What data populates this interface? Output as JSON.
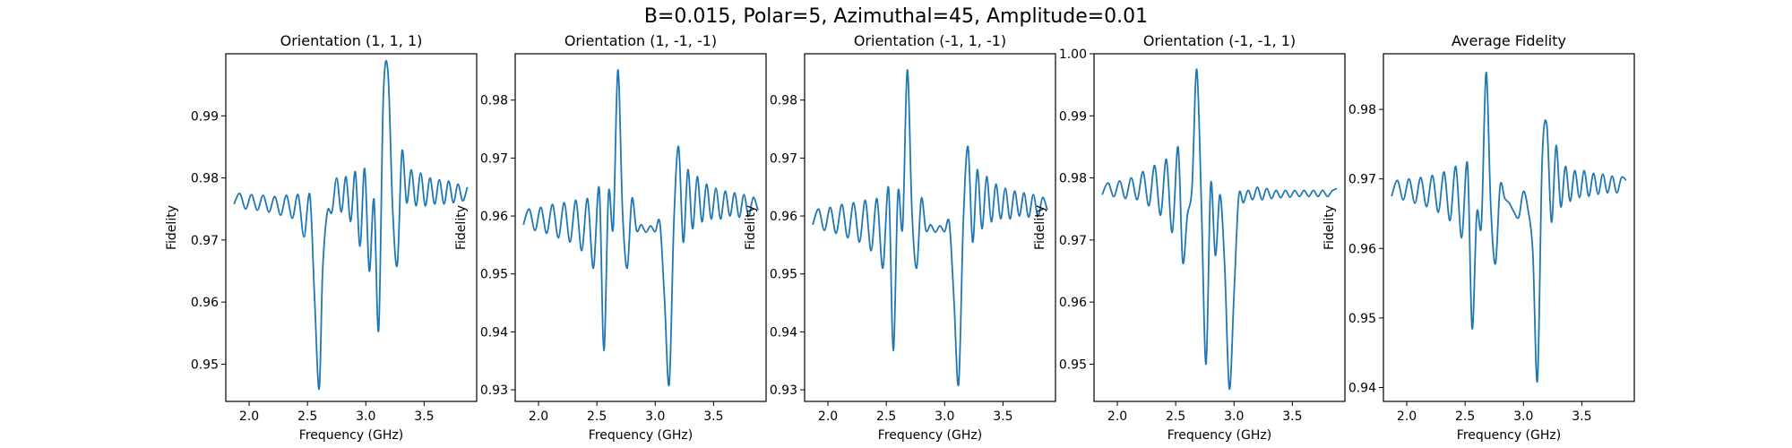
{
  "figure": {
    "suptitle": "B=0.015, Polar=5, Azimuthal=45, Amplitude=0.01",
    "line_color": "#1f77b4"
  },
  "chart_data": [
    {
      "type": "line",
      "title": "Orientation (1, 1, 1)",
      "xlabel": "Frequency (GHz)",
      "ylabel": "Fidelity",
      "xlim": [
        1.8,
        3.95
      ],
      "ylim": [
        0.944,
        1.0
      ],
      "xticks": [
        2.0,
        2.5,
        3.0,
        3.5
      ],
      "xtick_labels": [
        "2.0",
        "2.5",
        "3.0",
        "3.5"
      ],
      "yticks": [
        0.95,
        0.96,
        0.97,
        0.98,
        0.99
      ],
      "ytick_labels": [
        "0.95",
        "0.96",
        "0.97",
        "0.98",
        "0.99"
      ],
      "grid": false,
      "series": [
        {
          "x": [
            1.87,
            1.92,
            1.97,
            2.02,
            2.07,
            2.12,
            2.17,
            2.22,
            2.27,
            2.32,
            2.37,
            2.42,
            2.47,
            2.52,
            2.56,
            2.6,
            2.63,
            2.67,
            2.71,
            2.75,
            2.79,
            2.83,
            2.87,
            2.91,
            2.95,
            2.99,
            3.03,
            3.07,
            3.11,
            3.15,
            3.19,
            3.23,
            3.27,
            3.31,
            3.35,
            3.39,
            3.43,
            3.47,
            3.51,
            3.55,
            3.59,
            3.63,
            3.67,
            3.71,
            3.75,
            3.79,
            3.83,
            3.87
          ],
          "y": [
            0.9758,
            0.9775,
            0.975,
            0.9773,
            0.9748,
            0.9772,
            0.9745,
            0.977,
            0.974,
            0.9772,
            0.9735,
            0.9773,
            0.9705,
            0.9773,
            0.961,
            0.946,
            0.965,
            0.9745,
            0.9745,
            0.98,
            0.9745,
            0.9802,
            0.973,
            0.981,
            0.969,
            0.9815,
            0.965,
            0.9765,
            0.9555,
            0.993,
            0.997,
            0.975,
            0.966,
            0.9843,
            0.976,
            0.9813,
            0.9755,
            0.9808,
            0.9755,
            0.98,
            0.9758,
            0.9797,
            0.9758,
            0.9795,
            0.976,
            0.979,
            0.9763,
            0.9785
          ]
        }
      ]
    },
    {
      "type": "line",
      "title": "Orientation (1, -1, -1)",
      "xlabel": "Frequency (GHz)",
      "ylabel": "Fidelity",
      "xlim": [
        1.8,
        3.95
      ],
      "ylim": [
        0.928,
        0.988
      ],
      "xticks": [
        2.0,
        2.5,
        3.0,
        3.5
      ],
      "xtick_labels": [
        "2.0",
        "2.5",
        "3.0",
        "3.5"
      ],
      "yticks": [
        0.93,
        0.94,
        0.95,
        0.96,
        0.97,
        0.98
      ],
      "ytick_labels": [
        "0.93",
        "0.94",
        "0.95",
        "0.96",
        "0.97",
        "0.98"
      ],
      "grid": false,
      "series": [
        {
          "x": [
            1.87,
            1.92,
            1.97,
            2.02,
            2.07,
            2.12,
            2.17,
            2.22,
            2.27,
            2.32,
            2.37,
            2.42,
            2.47,
            2.52,
            2.56,
            2.6,
            2.64,
            2.68,
            2.72,
            2.76,
            2.8,
            2.84,
            2.88,
            2.92,
            2.96,
            3.0,
            3.04,
            3.08,
            3.12,
            3.16,
            3.2,
            3.24,
            3.28,
            3.32,
            3.36,
            3.4,
            3.44,
            3.48,
            3.52,
            3.56,
            3.6,
            3.64,
            3.68,
            3.72,
            3.76,
            3.8,
            3.84,
            3.88
          ],
          "y": [
            0.9585,
            0.9612,
            0.9575,
            0.9615,
            0.957,
            0.962,
            0.9562,
            0.9623,
            0.9555,
            0.9627,
            0.954,
            0.963,
            0.951,
            0.9648,
            0.9368,
            0.964,
            0.958,
            0.9852,
            0.9608,
            0.951,
            0.963,
            0.9575,
            0.9585,
            0.9572,
            0.9583,
            0.9573,
            0.9588,
            0.9455,
            0.931,
            0.959,
            0.972,
            0.9555,
            0.968,
            0.9578,
            0.9668,
            0.959,
            0.9655,
            0.9595,
            0.9648,
            0.9595,
            0.9643,
            0.96,
            0.964,
            0.9598,
            0.9637,
            0.96,
            0.9632,
            0.961
          ]
        }
      ]
    },
    {
      "type": "line",
      "title": "Orientation (-1, 1, -1)",
      "xlabel": "Frequency (GHz)",
      "ylabel": "Fidelity",
      "xlim": [
        1.8,
        3.95
      ],
      "ylim": [
        0.928,
        0.988
      ],
      "xticks": [
        2.0,
        2.5,
        3.0,
        3.5
      ],
      "xtick_labels": [
        "2.0",
        "2.5",
        "3.0",
        "3.5"
      ],
      "yticks": [
        0.93,
        0.94,
        0.95,
        0.96,
        0.97,
        0.98
      ],
      "ytick_labels": [
        "0.93",
        "0.94",
        "0.95",
        "0.96",
        "0.97",
        "0.98"
      ],
      "grid": false,
      "series": [
        {
          "x": [
            1.87,
            1.92,
            1.97,
            2.02,
            2.07,
            2.12,
            2.17,
            2.22,
            2.27,
            2.32,
            2.37,
            2.42,
            2.47,
            2.52,
            2.56,
            2.6,
            2.64,
            2.68,
            2.72,
            2.76,
            2.8,
            2.84,
            2.88,
            2.92,
            2.96,
            3.0,
            3.04,
            3.08,
            3.12,
            3.16,
            3.2,
            3.24,
            3.28,
            3.32,
            3.36,
            3.4,
            3.44,
            3.48,
            3.52,
            3.56,
            3.6,
            3.64,
            3.68,
            3.72,
            3.76,
            3.8,
            3.84,
            3.88
          ],
          "y": [
            0.9585,
            0.9612,
            0.9575,
            0.9615,
            0.957,
            0.962,
            0.9562,
            0.9623,
            0.9555,
            0.9627,
            0.954,
            0.963,
            0.951,
            0.9648,
            0.9368,
            0.964,
            0.958,
            0.9852,
            0.9608,
            0.951,
            0.963,
            0.9575,
            0.9585,
            0.9572,
            0.9583,
            0.9573,
            0.9588,
            0.9455,
            0.931,
            0.959,
            0.972,
            0.9555,
            0.968,
            0.9578,
            0.9668,
            0.959,
            0.9655,
            0.9595,
            0.9648,
            0.9595,
            0.9643,
            0.96,
            0.964,
            0.9598,
            0.9637,
            0.96,
            0.9632,
            0.961
          ]
        }
      ]
    },
    {
      "type": "line",
      "title": "Orientation (-1, -1, 1)",
      "xlabel": "Frequency (GHz)",
      "ylabel": "Fidelity",
      "xlim": [
        1.8,
        3.95
      ],
      "ylim": [
        0.944,
        1.0
      ],
      "xticks": [
        2.0,
        2.5,
        3.0,
        3.5
      ],
      "xtick_labels": [
        "2.0",
        "2.5",
        "3.0",
        "3.5"
      ],
      "yticks": [
        0.95,
        0.96,
        0.97,
        0.98,
        0.99,
        1.0
      ],
      "ytick_labels": [
        "0.95",
        "0.96",
        "0.97",
        "0.98",
        "0.99",
        "1.00"
      ],
      "grid": false,
      "series": [
        {
          "x": [
            1.87,
            1.92,
            1.97,
            2.02,
            2.07,
            2.12,
            2.17,
            2.22,
            2.27,
            2.32,
            2.37,
            2.42,
            2.47,
            2.52,
            2.56,
            2.6,
            2.64,
            2.68,
            2.72,
            2.76,
            2.8,
            2.84,
            2.88,
            2.92,
            2.96,
            3.0,
            3.04,
            3.08,
            3.12,
            3.16,
            3.2,
            3.24,
            3.28,
            3.32,
            3.36,
            3.4,
            3.44,
            3.48,
            3.52,
            3.56,
            3.6,
            3.64,
            3.68,
            3.72,
            3.76,
            3.8,
            3.84,
            3.88
          ],
          "y": [
            0.9773,
            0.9792,
            0.977,
            0.9795,
            0.9767,
            0.98,
            0.9765,
            0.981,
            0.9755,
            0.982,
            0.974,
            0.983,
            0.9712,
            0.985,
            0.9665,
            0.974,
            0.9785,
            0.9975,
            0.976,
            0.95,
            0.979,
            0.9675,
            0.9773,
            0.9658,
            0.946,
            0.9613,
            0.977,
            0.976,
            0.978,
            0.9765,
            0.9785,
            0.9765,
            0.9783,
            0.9767,
            0.978,
            0.9768,
            0.978,
            0.9769,
            0.978,
            0.977,
            0.978,
            0.977,
            0.978,
            0.977,
            0.978,
            0.977,
            0.9779,
            0.9783
          ]
        }
      ]
    },
    {
      "type": "line",
      "title": "Average Fidelity",
      "xlabel": "Frequency (GHz)",
      "ylabel": "Fidelity",
      "xlim": [
        1.8,
        3.95
      ],
      "ylim": [
        0.938,
        0.988
      ],
      "xticks": [
        2.0,
        2.5,
        3.0,
        3.5
      ],
      "xtick_labels": [
        "2.0",
        "2.5",
        "3.0",
        "3.5"
      ],
      "yticks": [
        0.94,
        0.95,
        0.96,
        0.97,
        0.98
      ],
      "ytick_labels": [
        "0.94",
        "0.95",
        "0.96",
        "0.97",
        "0.98"
      ],
      "grid": false,
      "series": [
        {
          "x": [
            1.87,
            1.92,
            1.97,
            2.02,
            2.07,
            2.12,
            2.17,
            2.22,
            2.27,
            2.32,
            2.37,
            2.42,
            2.47,
            2.52,
            2.56,
            2.6,
            2.64,
            2.68,
            2.72,
            2.76,
            2.8,
            2.84,
            2.88,
            2.92,
            2.96,
            3.0,
            3.04,
            3.08,
            3.12,
            3.16,
            3.2,
            3.24,
            3.28,
            3.32,
            3.36,
            3.4,
            3.44,
            3.48,
            3.52,
            3.56,
            3.6,
            3.64,
            3.68,
            3.72,
            3.76,
            3.8,
            3.84,
            3.88
          ],
          "y": [
            0.9675,
            0.9698,
            0.967,
            0.97,
            0.9665,
            0.9702,
            0.966,
            0.9705,
            0.9652,
            0.971,
            0.964,
            0.9718,
            0.9615,
            0.9722,
            0.9485,
            0.965,
            0.9635,
            0.9853,
            0.966,
            0.9578,
            0.969,
            0.9672,
            0.9665,
            0.9652,
            0.9645,
            0.9682,
            0.9655,
            0.9595,
            0.941,
            0.9725,
            0.9778,
            0.9638,
            0.9748,
            0.966,
            0.9718,
            0.9668,
            0.9712,
            0.9673,
            0.9712,
            0.9675,
            0.9708,
            0.9678,
            0.9707,
            0.968,
            0.9704,
            0.968,
            0.9702,
            0.9698
          ]
        }
      ]
    }
  ]
}
